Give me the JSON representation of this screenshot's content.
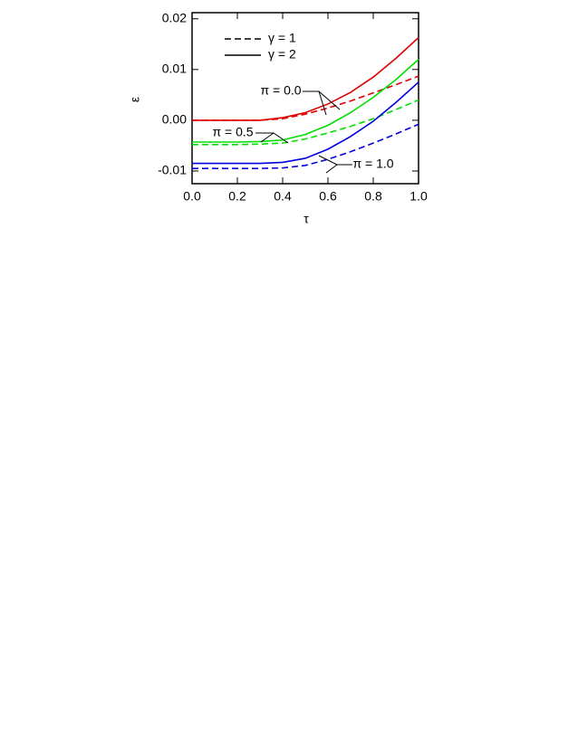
{
  "chart_data": {
    "type": "line",
    "x_label": "τ",
    "y_label": "ε",
    "x": [
      0,
      0.1,
      0.2,
      0.3,
      0.4,
      0.5,
      0.6,
      0.7,
      0.8,
      0.9,
      1.0
    ],
    "series": [
      {
        "color": "#e00000",
        "dashed": false,
        "values": [
          0,
          0,
          0,
          0,
          0.0005,
          0.0015,
          0.0032,
          0.0055,
          0.0085,
          0.0122,
          0.0163
        ]
      },
      {
        "color": "#e00000",
        "dashed": true,
        "values": [
          0,
          0,
          0,
          0,
          0.0003,
          0.0012,
          0.0024,
          0.0038,
          0.0054,
          0.007,
          0.0087
        ]
      },
      {
        "color": "#00e000",
        "dashed": false,
        "values": [
          -0.0043,
          -0.0043,
          -0.0043,
          -0.0042,
          -0.0039,
          -0.0028,
          -0.001,
          0.0015,
          0.0045,
          0.008,
          0.012
        ]
      },
      {
        "color": "#00e000",
        "dashed": true,
        "values": [
          -0.0048,
          -0.0048,
          -0.0048,
          -0.0047,
          -0.0045,
          -0.0037,
          -0.0025,
          -0.0012,
          0.0003,
          0.0021,
          0.004
        ]
      },
      {
        "color": "#0000e0",
        "dashed": false,
        "values": [
          -0.0085,
          -0.0085,
          -0.0085,
          -0.0085,
          -0.0083,
          -0.0075,
          -0.0057,
          -0.0032,
          -0.0002,
          0.0035,
          0.0075
        ]
      },
      {
        "color": "#0000e0",
        "dashed": true,
        "values": [
          -0.0095,
          -0.0095,
          -0.0095,
          -0.0095,
          -0.0094,
          -0.0089,
          -0.0077,
          -0.0062,
          -0.0045,
          -0.0027,
          -0.0008
        ]
      }
    ],
    "legend": [
      {
        "label": "γ = 1",
        "dashed": true
      },
      {
        "label": "γ = 2",
        "dashed": false
      }
    ],
    "annotations": [
      "π = 0.0",
      "π = 0.5",
      "π = 1.0"
    ],
    "xlim": [
      0,
      1
    ],
    "xticks": [
      {
        "value": 0,
        "label": "0.0"
      },
      0.2,
      0.4,
      0.6,
      0.8,
      {
        "value": 1,
        "label": "1.0"
      }
    ],
    "ylim": [
      -0.0125,
      0.0212
    ],
    "yticks": [
      -0.01,
      {
        "value": 0,
        "label": "0.00"
      },
      0.01,
      0.02
    ]
  }
}
